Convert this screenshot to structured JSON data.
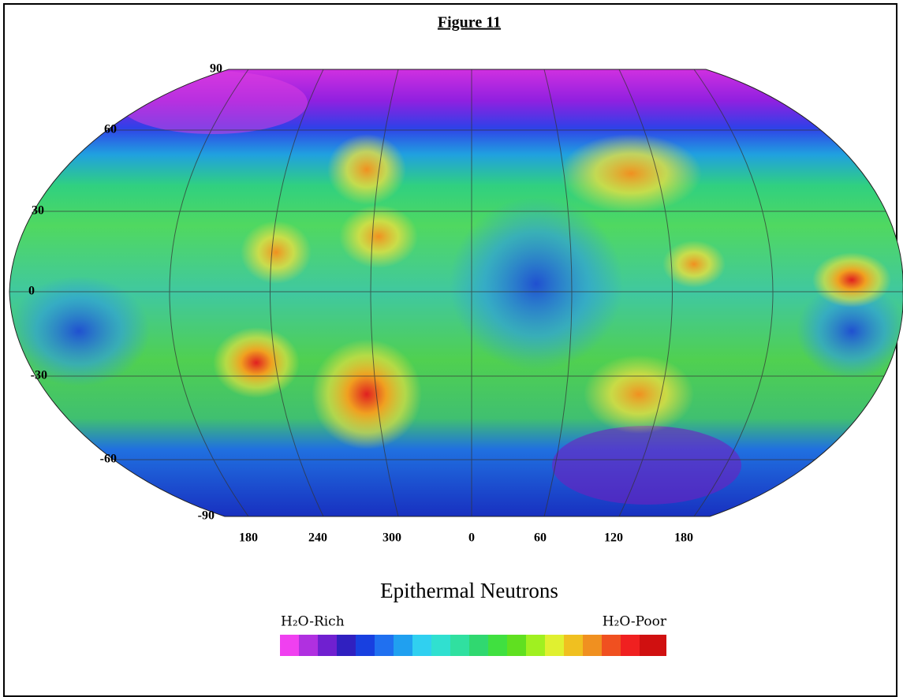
{
  "figure_label": "Figure 11",
  "map": {
    "latitude_labels": [
      "90",
      "60",
      "30",
      "0",
      "-30",
      "-60",
      "-90"
    ],
    "longitude_labels": [
      "180",
      "240",
      "300",
      "0",
      "60",
      "120",
      "180"
    ],
    "title": "Epithermal Neutrons"
  },
  "legend": {
    "low_label": "H₂O-Rich",
    "high_label": "H₂O-Poor"
  }
}
